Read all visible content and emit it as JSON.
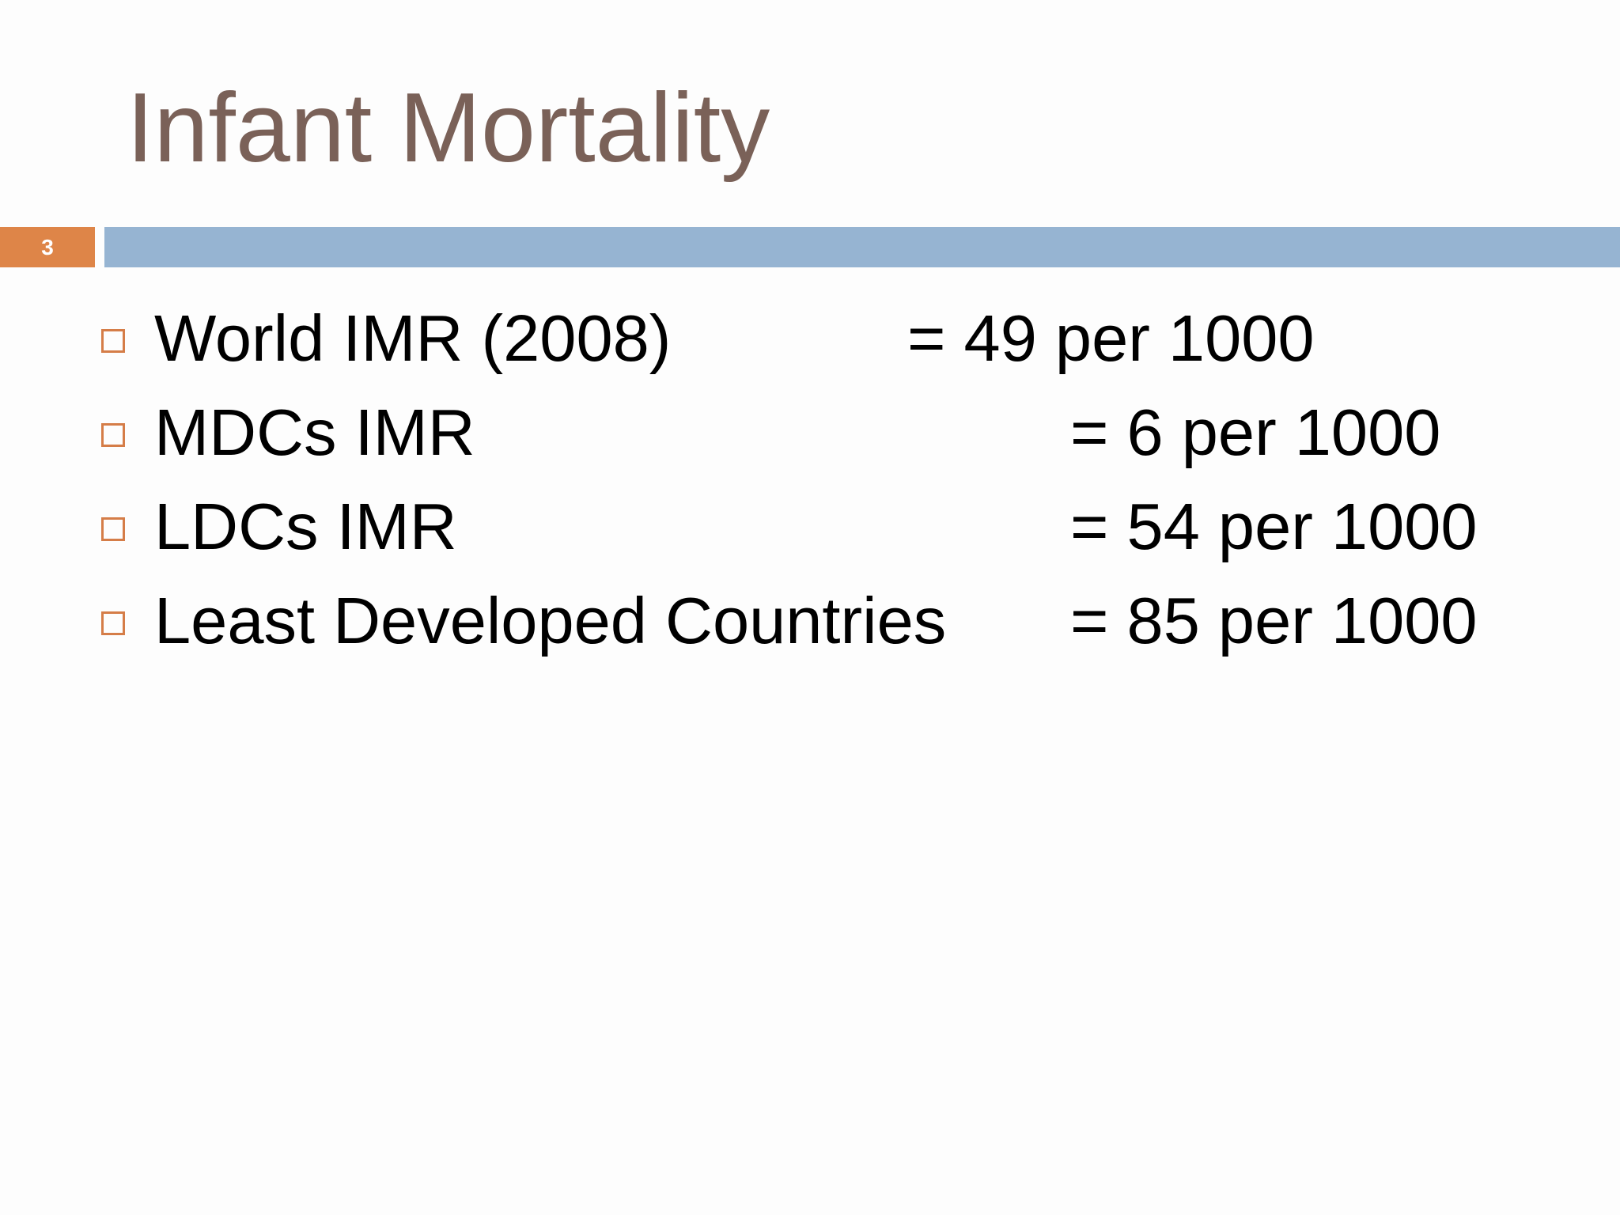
{
  "slide": {
    "title": "Infant Mortality",
    "number": "3",
    "colors": {
      "title": "#7a6158",
      "accent": "#de8548",
      "divider": "#96b4d2",
      "bullet": "#d57d48"
    },
    "bullets": [
      {
        "label": "World IMR (2008)",
        "value": "= 49 per 1000"
      },
      {
        "label": "MDCs IMR",
        "value": "= 6 per 1000"
      },
      {
        "label": "LDCs IMR",
        "value": "= 54 per 1000"
      },
      {
        "label": "Least Developed Countries",
        "value": "= 85 per 1000"
      }
    ]
  }
}
